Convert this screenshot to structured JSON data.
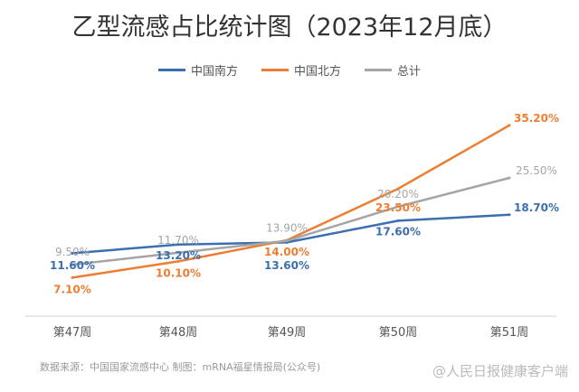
{
  "chart_data": {
    "type": "line",
    "title": "乙型流感占比统计图（2023年12月底）",
    "categories": [
      "第47周",
      "第48周",
      "第49周",
      "第50周",
      "第51周"
    ],
    "series": [
      {
        "name": "中国南方",
        "color": "#3a6fb0",
        "values": [
          11.6,
          13.2,
          13.6,
          17.6,
          18.7
        ],
        "labels": [
          "11.60%",
          "13.20%",
          "13.60%",
          "17.60%",
          "18.70%"
        ]
      },
      {
        "name": "中国北方",
        "color": "#ed7d31",
        "values": [
          7.1,
          10.1,
          14.0,
          23.5,
          35.2
        ],
        "labels": [
          "7.10%",
          "10.10%",
          "14.00%",
          "23.50%",
          "35.20%"
        ]
      },
      {
        "name": "总计",
        "color": "#a5a5a5",
        "values": [
          9.5,
          11.7,
          13.9,
          20.2,
          25.5
        ],
        "labels": [
          "9.50%",
          "11.70%",
          "13.90%",
          "20.20%",
          "25.50%"
        ]
      }
    ],
    "ylim": [
      0,
      40
    ],
    "grid": false,
    "legend": "top"
  },
  "source": "数据来源：中国国家流感中心 制图：mRNA福星情报局(公众号)",
  "watermark": "@人民日报健康客户端"
}
